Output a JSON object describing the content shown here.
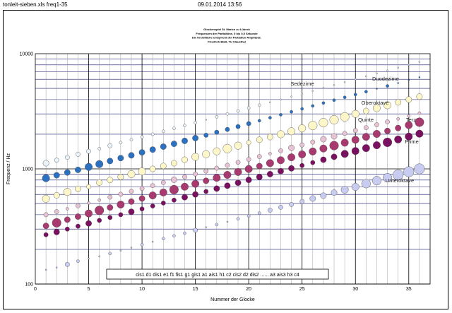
{
  "header": {
    "left": "tonleit-sieben.xls freq1-35",
    "center": "09.01.2014 13:56"
  },
  "chart_data": {
    "type": "scatter",
    "title_lines": [
      "Glockenspiel St. Marien zu Lübeck",
      "Frequenzen der Partialtöne, 0 bis 0,5 Sekunde",
      "Die Kreisfläche entspricht der Partialton-Amplitude.",
      "Friedrich Blatt, TU Clausthal"
    ],
    "xlabel": "Nummer der Glocke",
    "ylabel": "Frequenz / Hz",
    "xlim": [
      0,
      37
    ],
    "ylim": [
      100,
      10000
    ],
    "yscale": "log",
    "xticks": [
      0,
      5,
      10,
      15,
      20,
      25,
      30,
      35
    ],
    "yticks": [
      100,
      1000,
      10000
    ],
    "grid": true,
    "note_names": "cis1  d1  dis1  e1  f1  fis1  g1  gis1  a1  ais1  h1  c2  cis2  d2  dis2 ...... a3  ais3  h3  c4",
    "series_labels": [
      "Duodezime",
      "Sedezime",
      "Oberoktave",
      "Quinte",
      "Terz",
      "Prime",
      "Unteroktave"
    ],
    "series": [
      {
        "name": "Unteroktave",
        "color": "#c8ccf0",
        "x": [
          1,
          2,
          3,
          4,
          5,
          6,
          7,
          8,
          9,
          10,
          11,
          12,
          13,
          14,
          15,
          16,
          17,
          18,
          19,
          20,
          21,
          22,
          23,
          24,
          25,
          26,
          27,
          28,
          29,
          30,
          31,
          32,
          33,
          34,
          35,
          36
        ],
        "y": [
          133,
          139,
          148,
          158,
          166,
          174,
          184,
          195,
          207,
          219,
          233,
          248,
          262,
          276,
          293,
          311,
          328,
          347,
          368,
          390,
          413,
          438,
          464,
          491,
          521,
          553,
          585,
          622,
          659,
          698,
          745,
          790,
          838,
          888,
          944,
          1000
        ],
        "s": [
          1,
          1,
          3,
          2,
          1,
          1,
          2,
          1,
          1,
          2,
          1,
          2,
          2,
          2,
          3,
          1,
          2,
          1,
          2,
          2,
          2,
          3,
          3,
          3,
          3,
          4,
          4,
          4,
          5,
          5,
          6,
          6,
          6,
          7,
          7,
          7
        ]
      },
      {
        "name": "Prime",
        "color": "#7a1060",
        "x": [
          1,
          2,
          3,
          4,
          5,
          6,
          7,
          8,
          9,
          10,
          11,
          12,
          13,
          14,
          15,
          16,
          17,
          18,
          19,
          20,
          21,
          22,
          23,
          24,
          25,
          26,
          27,
          28,
          29,
          30,
          31,
          32,
          33,
          34,
          35,
          36
        ],
        "y": [
          268,
          283,
          300,
          318,
          336,
          357,
          378,
          400,
          424,
          449,
          476,
          505,
          535,
          567,
          600,
          636,
          674,
          714,
          757,
          802,
          850,
          900,
          954,
          1010,
          1070,
          1134,
          1201,
          1273,
          1349,
          1429,
          1514,
          1604,
          1700,
          1801,
          1908,
          2020
        ],
        "s": [
          3,
          4,
          3,
          3,
          4,
          3,
          3,
          3,
          4,
          3,
          3,
          3,
          3,
          4,
          4,
          3,
          4,
          4,
          4,
          4,
          4,
          4,
          4,
          4,
          3,
          3,
          4,
          4,
          5,
          5,
          5,
          5,
          6,
          5,
          5,
          5
        ]
      },
      {
        "name": "Terz",
        "color": "#a83a70",
        "x": [
          1,
          2,
          3,
          4,
          5,
          6,
          7,
          8,
          9,
          10,
          11,
          12,
          13,
          14,
          15,
          16,
          17,
          18,
          19,
          20,
          21,
          22,
          23,
          24,
          25,
          26,
          27,
          28,
          29,
          30,
          31,
          32,
          33,
          34,
          35,
          36
        ],
        "y": [
          320,
          340,
          362,
          385,
          410,
          436,
          462,
          490,
          520,
          553,
          588,
          624,
          660,
          700,
          742,
          788,
          836,
          887,
          940,
          997,
          1057,
          1121,
          1188,
          1260,
          1336,
          1416,
          1502,
          1592,
          1688,
          1790,
          1898,
          2012,
          2133,
          2262,
          2398,
          2542
        ],
        "s": [
          4,
          6,
          4,
          4,
          5,
          6,
          4,
          5,
          4,
          4,
          5,
          5,
          6,
          5,
          5,
          4,
          5,
          5,
          5,
          5,
          4,
          5,
          5,
          5,
          5,
          5,
          5,
          6,
          5,
          5,
          5,
          5,
          4,
          4,
          5,
          6
        ]
      },
      {
        "name": "Quinte",
        "color": "#e6c2d4",
        "x": [
          1,
          2,
          3,
          4,
          5,
          6,
          7,
          8,
          9,
          10,
          11,
          12,
          13,
          14,
          15,
          16,
          17,
          18,
          19,
          20,
          21,
          22,
          23,
          24,
          25,
          26,
          27,
          28,
          29,
          30,
          31,
          32,
          33,
          34,
          35,
          36
        ],
        "y": [
          400,
          425,
          450,
          478,
          505,
          536,
          568,
          602,
          638,
          676,
          716,
          760,
          804,
          852,
          903,
          957,
          1014,
          1075,
          1139,
          1207,
          1279,
          1355,
          1436,
          1522,
          1612,
          1708,
          1810,
          1918,
          2032,
          2153,
          2281,
          2417,
          2561,
          2714,
          2875,
          3046
        ],
        "s": [
          3,
          3,
          2,
          3,
          2,
          2,
          3,
          3,
          3,
          3,
          3,
          3,
          4,
          3,
          3,
          3,
          3,
          3,
          3,
          3,
          3,
          2,
          3,
          4,
          3,
          3,
          4,
          4,
          3,
          3,
          3,
          3,
          3,
          2,
          2,
          2
        ]
      },
      {
        "name": "Oberoktave",
        "color": "#fcf6c8",
        "x": [
          1,
          2,
          3,
          4,
          5,
          6,
          7,
          8,
          9,
          10,
          11,
          12,
          13,
          14,
          15,
          16,
          17,
          18,
          19,
          20,
          21,
          22,
          23,
          24,
          25,
          26,
          27,
          28,
          29,
          30,
          31,
          32,
          33,
          34,
          35,
          36
        ],
        "y": [
          550,
          590,
          630,
          670,
          700,
          760,
          800,
          850,
          900,
          950,
          1000,
          1060,
          1120,
          1200,
          1270,
          1340,
          1420,
          1500,
          1590,
          1690,
          1790,
          1890,
          2000,
          2120,
          2250,
          2380,
          2520,
          2670,
          2830,
          3000,
          3180,
          3370,
          3570,
          3780,
          4000,
          4240
        ],
        "s": [
          5,
          4,
          5,
          4,
          3,
          4,
          4,
          4,
          5,
          5,
          4,
          4,
          4,
          4,
          5,
          5,
          5,
          6,
          5,
          3,
          4,
          4,
          5,
          5,
          5,
          6,
          6,
          6,
          6,
          5,
          4,
          5,
          5,
          4,
          4,
          4
        ]
      },
      {
        "name": "Duodezime",
        "color": "#2c70c0",
        "x": [
          1,
          2,
          3,
          4,
          5,
          6,
          7,
          8,
          9,
          10,
          11,
          12,
          13,
          14,
          15,
          16,
          17,
          18,
          19,
          20,
          21,
          22,
          23,
          24,
          25,
          26,
          27,
          28,
          29,
          30,
          31,
          32,
          33,
          34,
          35,
          36
        ],
        "y": [
          830,
          880,
          930,
          980,
          1040,
          1100,
          1170,
          1240,
          1310,
          1390,
          1470,
          1560,
          1650,
          1750,
          1850,
          1960,
          2080,
          2200,
          2330,
          2470,
          2620,
          2780,
          2950,
          3130,
          3320,
          3520,
          3730,
          3950,
          4180,
          4420,
          4680,
          4960,
          5250,
          5560,
          5890,
          6240
        ],
        "s": [
          5,
          4,
          4,
          4,
          5,
          5,
          4,
          4,
          4,
          4,
          4,
          4,
          4,
          4,
          4,
          3,
          3,
          3,
          3,
          3,
          2,
          2,
          2,
          2,
          2,
          2,
          2,
          2,
          2,
          2,
          2,
          1,
          2,
          1,
          1,
          1
        ]
      },
      {
        "name": "Sedezime",
        "color": "#e8f2f8",
        "x": [
          1,
          2,
          3,
          4,
          5,
          6,
          7,
          8,
          9,
          10,
          11,
          12,
          13,
          14,
          15,
          16,
          17,
          18,
          19,
          20,
          21,
          22,
          23,
          24,
          25,
          26,
          27,
          28,
          29,
          30,
          31,
          32,
          33,
          34,
          35,
          36
        ],
        "y": [
          1120,
          1190,
          1260,
          1340,
          1420,
          1500,
          1590,
          1690,
          1790,
          1890,
          2000,
          2120,
          2250,
          2380,
          2520,
          2670,
          2830,
          3000,
          3180,
          3370,
          3570,
          3780,
          4000,
          4240,
          4490,
          4760,
          5040,
          5340,
          5660,
          6000,
          6360,
          6740,
          7140,
          7560,
          8010,
          8490
        ],
        "s": [
          4,
          3,
          3,
          3,
          3,
          2,
          3,
          2,
          2,
          2,
          2,
          2,
          2,
          2,
          2,
          1,
          2,
          2,
          2,
          2,
          2,
          1,
          1,
          1,
          1,
          1,
          1,
          1,
          1,
          1,
          1,
          1,
          1,
          1,
          1,
          1
        ]
      }
    ]
  }
}
